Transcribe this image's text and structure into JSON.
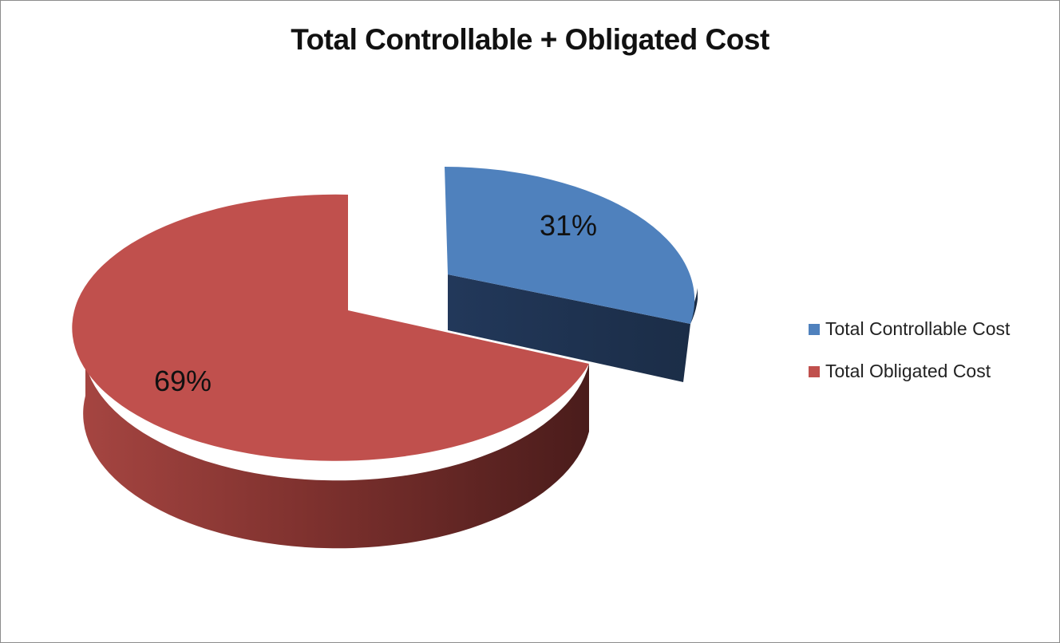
{
  "chart_data": {
    "type": "pie",
    "title": "Total Controllable + Obligated Cost",
    "style": "3d-exploded",
    "legend_position": "right",
    "slices": [
      {
        "name": "Total Controllable Cost",
        "value": 31,
        "label": "31%",
        "color": "#4f81bd",
        "side_color": "#1f3350",
        "exploded": true
      },
      {
        "name": "Total Obligated Cost",
        "value": 69,
        "label": "69%",
        "color": "#c0504d",
        "side_color": "#6e2a27",
        "exploded": false
      }
    ]
  }
}
